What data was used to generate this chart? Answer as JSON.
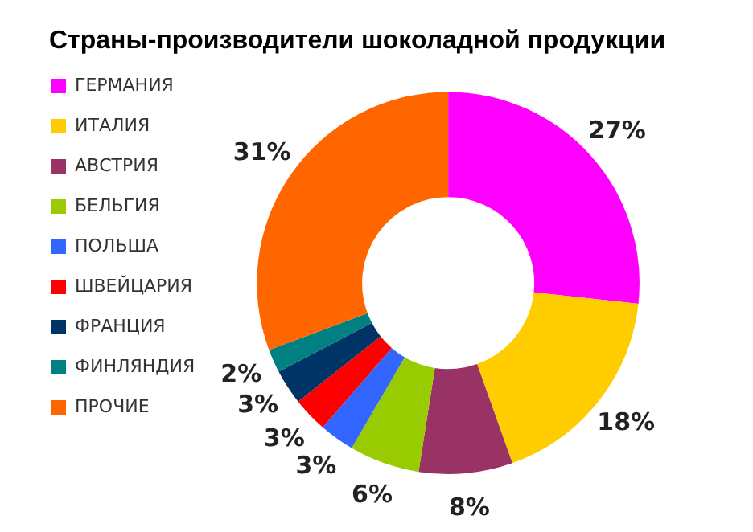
{
  "chart_data": {
    "type": "donut",
    "title": "Страны-производители шоколадной продукции",
    "categories": [
      "ГЕРМАНИЯ",
      "ИТАЛИЯ",
      "АВСТРИЯ",
      "БЕЛЬГИЯ",
      "ПОЛЬША",
      "ШВЕЙЦАРИЯ",
      "ФРАНЦИЯ",
      "ФИНЛЯНДИЯ",
      "ПРОЧИЕ"
    ],
    "values": [
      27,
      18,
      8,
      6,
      3,
      3,
      3,
      2,
      31
    ],
    "value_labels": [
      "27%",
      "18%",
      "8%",
      "6%",
      "3%",
      "3%",
      "3%",
      "2%",
      "31%"
    ],
    "colors": [
      "#ff00ff",
      "#ffcc00",
      "#993366",
      "#99cc00",
      "#3366ff",
      "#ff0000",
      "#003366",
      "#008080",
      "#ff6600"
    ],
    "legend": "left"
  }
}
